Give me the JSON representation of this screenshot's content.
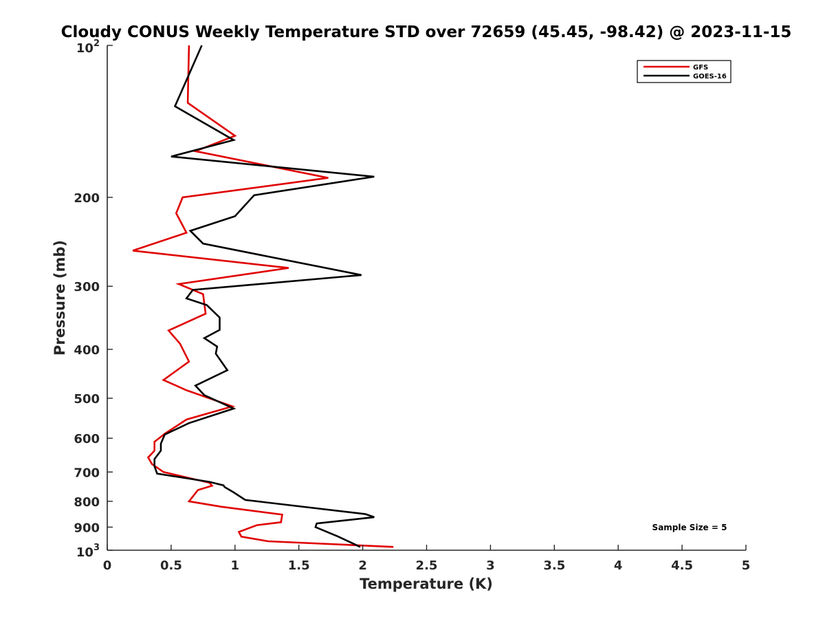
{
  "chart_data": {
    "type": "line",
    "title": "Cloudy CONUS Weekly Temperature STD over 72659 (45.45, -98.42) @ 2023-11-15",
    "xlabel": "Temperature (K)",
    "ylabel": "Pressure (mb)",
    "xlim": [
      0,
      5
    ],
    "ylim": [
      100,
      1000
    ],
    "yscale": "log",
    "yreverse": true,
    "x_ticks": [
      0,
      0.5,
      1,
      1.5,
      2,
      2.5,
      3,
      3.5,
      4,
      4.5,
      5
    ],
    "x_tick_labels": [
      "0",
      "0.5",
      "1",
      "1.5",
      "2",
      "2.5",
      "3",
      "3.5",
      "4",
      "4.5",
      "5"
    ],
    "y_ticks": [
      200,
      300,
      400,
      500,
      600,
      700,
      800,
      900
    ],
    "y_tick_labels": [
      "200",
      "300",
      "400",
      "500",
      "600",
      "700",
      "800",
      "900"
    ],
    "y_tick_100": {
      "base": "10",
      "exp": "2"
    },
    "y_tick_1000": {
      "base": "10",
      "exp": "3"
    },
    "grid": false,
    "legend_position": "top-right",
    "annotation": "Sample Size = 5",
    "series": [
      {
        "name": "GFS",
        "color": "#e00000",
        "x": [
          0.64,
          0.63,
          1.0,
          0.69,
          1.73,
          0.59,
          0.54,
          0.62,
          0.2,
          1.42,
          0.56,
          0.75,
          0.77,
          0.48,
          0.57,
          0.64,
          0.44,
          0.62,
          0.98,
          0.62,
          0.45,
          0.37,
          0.37,
          0.32,
          0.35,
          0.44,
          0.8,
          0.82,
          0.71,
          0.64,
          0.89,
          1.37,
          1.36,
          1.17,
          1.03,
          1.05,
          1.26,
          2.24
        ],
        "y": [
          100,
          130,
          151,
          162,
          183,
          200,
          215,
          235,
          255,
          276,
          297,
          311,
          340,
          367,
          390,
          423,
          460,
          482,
          519,
          551,
          588,
          610,
          635,
          655,
          675,
          700,
          735,
          745,
          760,
          800,
          820,
          850,
          880,
          892,
          920,
          940,
          960,
          985
        ]
      },
      {
        "name": "GOES-16",
        "color": "#000000",
        "x": [
          0.74,
          0.53,
          0.99,
          0.5,
          2.09,
          1.15,
          1.0,
          0.65,
          0.75,
          1.99,
          0.67,
          0.62,
          0.78,
          0.88,
          0.88,
          0.76,
          0.86,
          0.85,
          0.94,
          0.69,
          0.76,
          0.99,
          0.64,
          0.45,
          0.42,
          0.42,
          0.37,
          0.37,
          0.39,
          0.8,
          0.91,
          0.92,
          0.99,
          1.08,
          2.02,
          2.09,
          1.64,
          1.63,
          1.81,
          1.98
        ],
        "y": [
          100,
          132,
          154,
          166,
          182,
          198,
          218,
          233,
          247,
          285,
          305,
          317,
          327,
          346,
          366,
          380,
          395,
          408,
          440,
          472,
          493,
          524,
          560,
          590,
          615,
          635,
          660,
          682,
          705,
          732,
          744,
          750,
          768,
          795,
          848,
          860,
          885,
          900,
          940,
          985
        ]
      }
    ]
  }
}
